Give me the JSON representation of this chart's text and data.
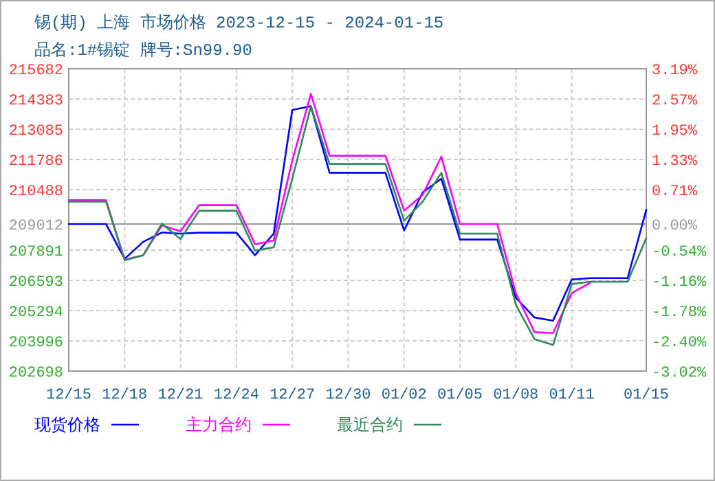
{
  "chart_data": {
    "type": "line",
    "title": "锡(期) 上海 市场价格 2023-12-15 - 2024-01-15",
    "subtitle": "品名:1#锡锭 牌号:Sn99.90",
    "x": [
      "2023-12-15",
      "2023-12-16",
      "2023-12-17",
      "2023-12-18",
      "2023-12-19",
      "2023-12-20",
      "2023-12-21",
      "2023-12-22",
      "2023-12-23",
      "2023-12-24",
      "2023-12-25",
      "2023-12-26",
      "2023-12-27",
      "2023-12-28",
      "2023-12-29",
      "2023-12-30",
      "2023-12-31",
      "2024-01-01",
      "2024-01-02",
      "2024-01-03",
      "2024-01-04",
      "2024-01-05",
      "2024-01-06",
      "2024-01-07",
      "2024-01-08",
      "2024-01-09",
      "2024-01-10",
      "2024-01-11",
      "2024-01-12",
      "2024-01-13",
      "2024-01-14",
      "2024-01-15"
    ],
    "series": [
      {
        "name": "现货价格",
        "color": "#0000ff",
        "values": [
          209012,
          209012,
          209012,
          207519,
          208250,
          208650,
          208600,
          208641,
          208641,
          208641,
          207673,
          208600,
          213911,
          214071,
          211214,
          211214,
          211214,
          211214,
          208736,
          210370,
          210960,
          208346,
          208346,
          208346,
          205844,
          204999,
          204862,
          206632,
          206690,
          206690,
          206690,
          209623
        ]
      },
      {
        "name": "主力合约",
        "color": "#ff00ff",
        "values": [
          210034,
          210034,
          210034,
          207480,
          207673,
          208954,
          208700,
          209821,
          209821,
          209821,
          208145,
          208304,
          211745,
          214602,
          211946,
          211946,
          211946,
          211946,
          209585,
          210270,
          211905,
          209012,
          209012,
          209012,
          206044,
          204368,
          204329,
          206044,
          206493,
          null,
          null,
          null
        ]
      },
      {
        "name": "最近合约",
        "color": "#2e8b57",
        "values": [
          209975,
          209975,
          209975,
          207460,
          207673,
          209031,
          208363,
          209585,
          209585,
          209585,
          207874,
          208009,
          210960,
          214071,
          211592,
          211592,
          211592,
          211592,
          209149,
          209975,
          211214,
          208600,
          208600,
          208600,
          205548,
          204073,
          203819,
          206434,
          206534,
          206534,
          206534,
          208405
        ]
      }
    ],
    "xlim": [
      "2023-12-15",
      "2024-01-15"
    ],
    "xticks": [
      {
        "value": "2023-12-15",
        "label": "12/15"
      },
      {
        "value": "2023-12-18",
        "label": "12/18"
      },
      {
        "value": "2023-12-21",
        "label": "12/21"
      },
      {
        "value": "2023-12-24",
        "label": "12/24"
      },
      {
        "value": "2023-12-27",
        "label": "12/27"
      },
      {
        "value": "2023-12-30",
        "label": "12/30"
      },
      {
        "value": "2024-01-02",
        "label": "01/02"
      },
      {
        "value": "2024-01-05",
        "label": "01/05"
      },
      {
        "value": "2024-01-08",
        "label": "01/08"
      },
      {
        "value": "2024-01-11",
        "label": "01/11"
      },
      {
        "value": "2024-01-15",
        "label": "01/15"
      }
    ],
    "ylim": [
      202698,
      215682
    ],
    "yticks": [
      215682,
      214383,
      213085,
      211786,
      210488,
      209012,
      207891,
      206593,
      205294,
      203996,
      202698
    ],
    "y2lim": [
      -3.02,
      3.19
    ],
    "y2ticks": [
      {
        "value": 3.19,
        "label": "3.19%"
      },
      {
        "value": 2.57,
        "label": "2.57%"
      },
      {
        "value": 1.95,
        "label": "1.95%"
      },
      {
        "value": 1.33,
        "label": "1.33%"
      },
      {
        "value": 0.71,
        "label": "0.71%"
      },
      {
        "value": 0,
        "label": "0.00%"
      },
      {
        "value": -0.54,
        "label": "-0.54%"
      },
      {
        "value": -1.16,
        "label": "-1.16%"
      },
      {
        "value": -1.78,
        "label": "-1.78%"
      },
      {
        "value": -2.4,
        "label": "-2.40%"
      },
      {
        "value": -3.02,
        "label": "-3.02%"
      }
    ],
    "ref_lines": [
      {
        "axis": "y",
        "value": 209012,
        "color": "#999999"
      }
    ],
    "grid": true,
    "legend": "bottom",
    "line_style": "solid"
  }
}
